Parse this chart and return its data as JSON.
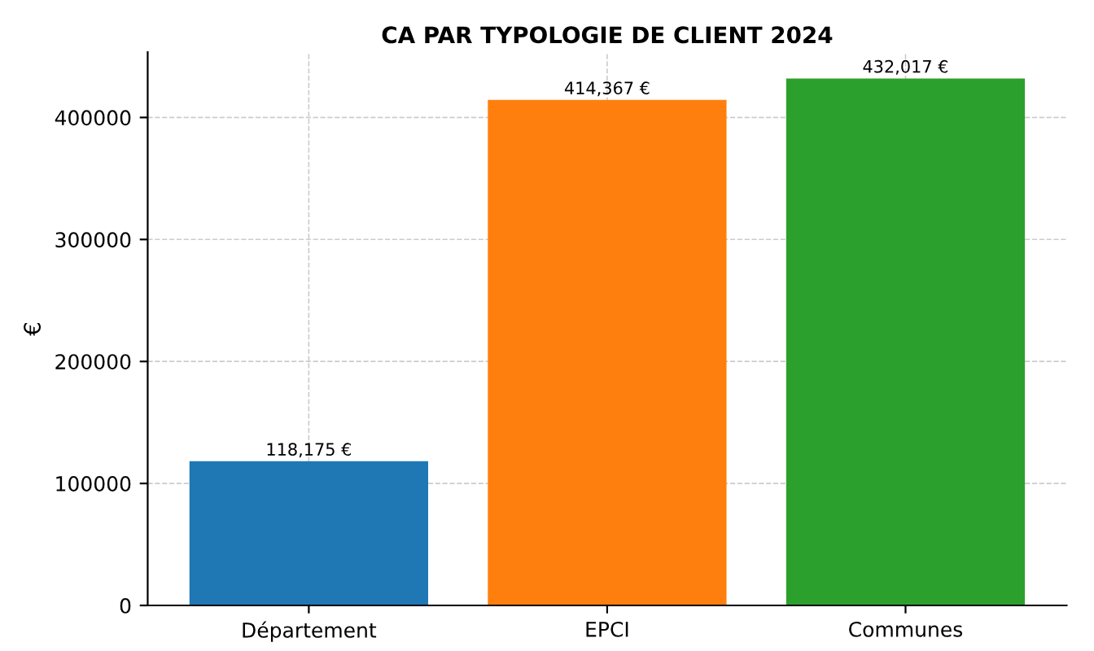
{
  "chart_data": {
    "type": "bar",
    "title": "CA PAR TYPOLOGIE DE CLIENT 2024",
    "ylabel": "€",
    "categories": [
      "Département",
      "EPCI",
      "Communes"
    ],
    "values": [
      118175,
      414367,
      432017
    ],
    "colors": [
      "#1f77b4",
      "#ff7f0e",
      "#2ca02c"
    ],
    "value_labels": [
      "118,175 €",
      "414,367 €",
      "432,017 €"
    ],
    "ylim": [
      0,
      453618
    ],
    "yticks": [
      0,
      100000,
      200000,
      300000,
      400000
    ],
    "grid": true
  }
}
